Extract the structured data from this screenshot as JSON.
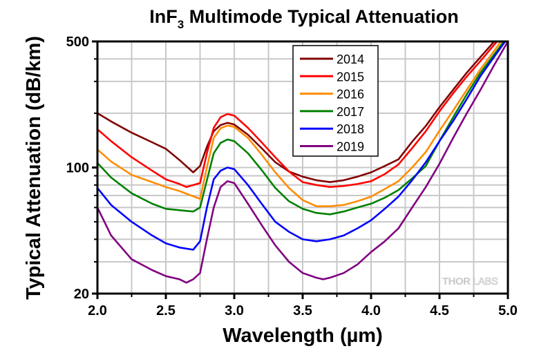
{
  "chart_data": {
    "type": "line",
    "title": "InF",
    "title_subscript": "3",
    "title_rest": " Multimode Typical Attenuation",
    "xlabel": "Wavelength (µm)",
    "ylabel": "Typical Attenuation (dB/km)",
    "xlim": [
      2.0,
      5.0
    ],
    "ylim": [
      20,
      500
    ],
    "yscale": "log",
    "xticks": [
      2.0,
      2.5,
      3.0,
      3.5,
      4.0,
      4.5,
      5.0
    ],
    "xtick_labels": [
      "2.0",
      "2.5",
      "3.0",
      "3.5",
      "4.0",
      "4.5",
      "5.0"
    ],
    "xminor": [
      2.25,
      2.75,
      3.25,
      3.75,
      4.25,
      4.75
    ],
    "yticks": [
      20,
      100,
      500
    ],
    "ytick_labels": [
      "20",
      "100",
      "500"
    ],
    "yminor": [
      30,
      40,
      50,
      60,
      70,
      80,
      90,
      200,
      300,
      400
    ],
    "grid": true,
    "legend_position": "top-center",
    "watermark": {
      "left": "THOR",
      "right": "LABS"
    },
    "series": [
      {
        "name": "2014",
        "color": "#800000",
        "x": [
          2.0,
          2.1,
          2.25,
          2.4,
          2.5,
          2.6,
          2.7,
          2.75,
          2.8,
          2.85,
          2.9,
          2.95,
          3.0,
          3.1,
          3.2,
          3.3,
          3.4,
          3.5,
          3.6,
          3.7,
          3.8,
          3.9,
          4.0,
          4.1,
          4.2,
          4.3,
          4.4,
          4.5,
          4.6,
          4.7,
          4.8,
          4.9
        ],
        "y": [
          200,
          180,
          156,
          138,
          127,
          110,
          94,
          102,
          130,
          159,
          172,
          177,
          173,
          152,
          128,
          107,
          95,
          89,
          85,
          83,
          85,
          89,
          94,
          102,
          111,
          139,
          170,
          216,
          270,
          336,
          410,
          500
        ]
      },
      {
        "name": "2015",
        "color": "#ff0000",
        "x": [
          2.0,
          2.1,
          2.25,
          2.4,
          2.5,
          2.6,
          2.65,
          2.75,
          2.8,
          2.85,
          2.9,
          2.95,
          3.0,
          3.1,
          3.2,
          3.3,
          3.4,
          3.5,
          3.6,
          3.7,
          3.8,
          3.9,
          4.0,
          4.1,
          4.2,
          4.3,
          4.4,
          4.5,
          4.6,
          4.7,
          4.8,
          4.92
        ],
        "y": [
          163,
          140,
          114,
          96,
          86,
          81,
          78,
          82,
          120,
          166,
          190,
          198,
          194,
          166,
          138,
          114,
          95,
          83,
          80,
          78,
          79,
          81,
          84,
          92,
          104,
          128,
          159,
          205,
          258,
          320,
          390,
          500
        ]
      },
      {
        "name": "2016",
        "color": "#ff8c00",
        "x": [
          2.0,
          2.1,
          2.25,
          2.4,
          2.5,
          2.6,
          2.75,
          2.8,
          2.85,
          2.9,
          2.95,
          3.0,
          3.1,
          3.2,
          3.3,
          3.4,
          3.5,
          3.6,
          3.7,
          3.8,
          3.9,
          4.0,
          4.1,
          4.2,
          4.3,
          4.4,
          4.5,
          4.6,
          4.7,
          4.8,
          4.95
        ],
        "y": [
          126,
          108,
          91,
          83,
          78,
          74,
          67,
          100,
          146,
          165,
          171,
          168,
          146,
          118,
          94,
          77,
          66,
          61,
          61,
          62,
          65,
          69,
          76,
          84,
          100,
          122,
          160,
          207,
          270,
          351,
          500
        ]
      },
      {
        "name": "2017",
        "color": "#008000",
        "x": [
          2.0,
          2.1,
          2.25,
          2.4,
          2.5,
          2.6,
          2.7,
          2.75,
          2.8,
          2.85,
          2.9,
          2.95,
          3.0,
          3.1,
          3.2,
          3.3,
          3.4,
          3.5,
          3.6,
          3.7,
          3.8,
          3.9,
          4.0,
          4.1,
          4.2,
          4.3,
          4.4,
          4.5,
          4.6,
          4.7,
          4.8,
          4.97
        ],
        "y": [
          106,
          88,
          72,
          63,
          59,
          58,
          57,
          60,
          85,
          120,
          137,
          143,
          140,
          120,
          97,
          77,
          65,
          59,
          56,
          55,
          57,
          60,
          63,
          68,
          75,
          87,
          102,
          140,
          190,
          255,
          336,
          500
        ]
      },
      {
        "name": "2018",
        "color": "#0000ff",
        "x": [
          2.0,
          2.1,
          2.25,
          2.4,
          2.5,
          2.6,
          2.7,
          2.75,
          2.8,
          2.85,
          2.9,
          2.95,
          3.0,
          3.1,
          3.2,
          3.3,
          3.4,
          3.5,
          3.6,
          3.7,
          3.8,
          3.9,
          4.0,
          4.1,
          4.2,
          4.3,
          4.4,
          4.5,
          4.6,
          4.7,
          4.8,
          4.98
        ],
        "y": [
          77,
          62,
          50,
          42,
          38,
          36,
          35,
          39,
          60,
          86,
          96,
          100,
          98,
          80,
          63,
          50,
          44,
          40,
          39,
          40,
          42,
          46,
          51,
          59,
          69,
          85,
          107,
          140,
          181,
          240,
          322,
          500
        ]
      },
      {
        "name": "2019",
        "color": "#800080",
        "x": [
          2.0,
          2.1,
          2.25,
          2.4,
          2.5,
          2.6,
          2.65,
          2.7,
          2.75,
          2.8,
          2.85,
          2.9,
          2.95,
          3.0,
          3.1,
          3.2,
          3.3,
          3.4,
          3.5,
          3.6,
          3.65,
          3.7,
          3.8,
          3.9,
          4.0,
          4.1,
          4.2,
          4.3,
          4.4,
          4.5,
          4.6,
          4.7,
          4.8,
          4.9,
          5.0
        ],
        "y": [
          60,
          42,
          31,
          27,
          25,
          24,
          23,
          24,
          26,
          40,
          60,
          78,
          84,
          82,
          63,
          48,
          37,
          30,
          26,
          24.5,
          24,
          24.5,
          26,
          29,
          34,
          39,
          46,
          60,
          78,
          105,
          146,
          200,
          270,
          370,
          500
        ]
      }
    ]
  }
}
